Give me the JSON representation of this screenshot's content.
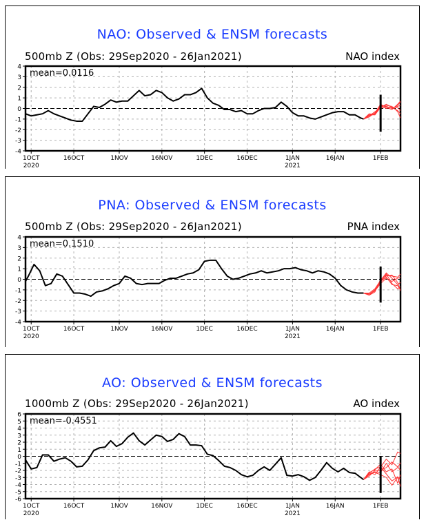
{
  "chart_data": [
    {
      "type": "line",
      "title": "NAO: Observed & ENSM forecasts",
      "subtitle": "500mb Z (Obs: 29Sep2020 - 26Jan2021)",
      "index_label": "NAO index",
      "mean_label": "mean=0.0116",
      "xlabel": "",
      "ylabel": "",
      "ylim": [
        -4,
        4
      ],
      "yticks": [
        "-4",
        "-3",
        "-2",
        "-1",
        "0",
        "1",
        "2",
        "3",
        "4"
      ],
      "xlim_days_since_29Sep2020": [
        0,
        132
      ],
      "xticks": [
        {
          "day": 2,
          "label": "1OCT",
          "year": "2020"
        },
        {
          "day": 17,
          "label": "16OCT",
          "year": ""
        },
        {
          "day": 33,
          "label": "1NOV",
          "year": ""
        },
        {
          "day": 48,
          "label": "16NOV",
          "year": ""
        },
        {
          "day": 63,
          "label": "1DEC",
          "year": ""
        },
        {
          "day": 78,
          "label": "16DEC",
          "year": ""
        },
        {
          "day": 94,
          "label": "1JAN",
          "year": "2021"
        },
        {
          "day": 109,
          "label": "16JAN",
          "year": ""
        },
        {
          "day": 125,
          "label": "1FEB",
          "year": ""
        }
      ],
      "grid": true,
      "today_bar": {
        "day": 125,
        "range": [
          -2.2,
          1.3
        ]
      },
      "observed": {
        "name": "Observed",
        "days": [
          0,
          2,
          4,
          6,
          8,
          10,
          12,
          14,
          16,
          18,
          20,
          22,
          24,
          26,
          28,
          30,
          32,
          34,
          36,
          38,
          40,
          42,
          44,
          46,
          48,
          50,
          52,
          54,
          56,
          58,
          60,
          62,
          64,
          66,
          68,
          70,
          72,
          74,
          76,
          78,
          80,
          82,
          84,
          86,
          88,
          90,
          92,
          94,
          96,
          98,
          100,
          102,
          104,
          106,
          108,
          110,
          112,
          114,
          116,
          118,
          119
        ],
        "values": [
          -0.5,
          -0.7,
          -0.6,
          -0.5,
          -0.2,
          -0.5,
          -0.7,
          -0.9,
          -1.1,
          -1.2,
          -1.2,
          -0.5,
          0.2,
          0.1,
          0.4,
          0.8,
          0.6,
          0.7,
          0.7,
          1.2,
          1.7,
          1.2,
          1.3,
          1.7,
          1.5,
          1.0,
          0.7,
          0.9,
          1.3,
          1.3,
          1.5,
          1.9,
          1.0,
          0.5,
          0.3,
          -0.1,
          -0.1,
          -0.3,
          -0.2,
          -0.5,
          -0.5,
          -0.2,
          0.0,
          0.0,
          0.1,
          0.6,
          0.2,
          -0.4,
          -0.7,
          -0.7,
          -0.9,
          -1.0,
          -0.8,
          -0.6,
          -0.4,
          -0.3,
          -0.3,
          -0.6,
          -0.6,
          -0.9,
          -1.0
        ]
      },
      "forecast": {
        "name": "ENSM forecasts",
        "days": [
          119,
          121,
          123,
          125,
          127,
          129,
          131,
          132
        ],
        "members": [
          [
            -1.0,
            -0.7,
            -0.5,
            0.3,
            0.2,
            0.0,
            0.3,
            0.6
          ],
          [
            -1.0,
            -0.6,
            -0.6,
            0.1,
            0.4,
            0.1,
            0.1,
            -0.2
          ],
          [
            -1.0,
            -0.8,
            -0.4,
            0.4,
            0.1,
            -0.1,
            0.4,
            0.7
          ],
          [
            -1.0,
            -0.6,
            -0.5,
            0.2,
            0.3,
            0.2,
            -0.3,
            -0.9
          ],
          [
            -1.0,
            -0.7,
            -0.3,
            0.0,
            0.2,
            0.0,
            0.2,
            0.3
          ],
          [
            -1.0,
            -0.5,
            -0.6,
            0.3,
            0.0,
            0.1,
            -0.2,
            -0.5
          ]
        ]
      },
      "colors": {
        "observed": "#000000",
        "forecast": "#ff3333",
        "title": "#1a3cff"
      }
    },
    {
      "type": "line",
      "title": "PNA: Observed & ENSM forecasts",
      "subtitle": "500mb Z (Obs: 29Sep2020 - 26Jan2021)",
      "index_label": "PNA index",
      "mean_label": "mean=0.1510",
      "xlabel": "",
      "ylabel": "",
      "ylim": [
        -4,
        4
      ],
      "yticks": [
        "-4",
        "-3",
        "-2",
        "-1",
        "0",
        "1",
        "2",
        "3",
        "4"
      ],
      "xlim_days_since_29Sep2020": [
        0,
        132
      ],
      "xticks": [
        {
          "day": 2,
          "label": "1OCT",
          "year": "2020"
        },
        {
          "day": 17,
          "label": "16OCT",
          "year": ""
        },
        {
          "day": 33,
          "label": "1NOV",
          "year": ""
        },
        {
          "day": 48,
          "label": "16NOV",
          "year": ""
        },
        {
          "day": 63,
          "label": "1DEC",
          "year": ""
        },
        {
          "day": 78,
          "label": "16DEC",
          "year": ""
        },
        {
          "day": 94,
          "label": "1JAN",
          "year": "2021"
        },
        {
          "day": 109,
          "label": "16JAN",
          "year": ""
        },
        {
          "day": 125,
          "label": "1FEB",
          "year": ""
        }
      ],
      "grid": true,
      "today_bar": {
        "day": 125,
        "range": [
          -2.2,
          1.2
        ]
      },
      "observed": {
        "name": "Observed",
        "days": [
          0,
          1,
          3,
          5,
          7,
          9,
          11,
          13,
          15,
          17,
          19,
          21,
          23,
          25,
          27,
          29,
          31,
          33,
          35,
          37,
          39,
          41,
          43,
          45,
          47,
          49,
          51,
          53,
          55,
          57,
          59,
          61,
          63,
          65,
          67,
          69,
          71,
          73,
          75,
          77,
          79,
          81,
          83,
          85,
          87,
          89,
          91,
          93,
          95,
          97,
          99,
          101,
          103,
          105,
          107,
          109,
          111,
          113,
          115,
          117,
          119
        ],
        "values": [
          -0.2,
          0.3,
          1.4,
          0.8,
          -0.6,
          -0.4,
          0.5,
          0.3,
          -0.5,
          -1.3,
          -1.3,
          -1.4,
          -1.6,
          -1.2,
          -1.1,
          -0.9,
          -0.6,
          -0.4,
          0.3,
          0.1,
          -0.4,
          -0.5,
          -0.4,
          -0.4,
          -0.4,
          -0.1,
          0.1,
          0.1,
          0.3,
          0.5,
          0.6,
          0.9,
          1.7,
          1.8,
          1.8,
          1.0,
          0.3,
          0.0,
          0.1,
          0.3,
          0.5,
          0.6,
          0.8,
          0.6,
          0.7,
          0.8,
          1.0,
          1.0,
          1.1,
          0.9,
          0.8,
          0.6,
          0.8,
          0.7,
          0.5,
          0.1,
          -0.6,
          -1.0,
          -1.2,
          -1.3,
          -1.3
        ]
      },
      "forecast": {
        "name": "ENSM forecasts",
        "days": [
          119,
          121,
          123,
          125,
          127,
          129,
          131,
          132
        ],
        "members": [
          [
            -1.3,
            -1.4,
            -1.1,
            -0.2,
            0.4,
            0.3,
            0.2,
            0.5
          ],
          [
            -1.3,
            -1.4,
            -1.0,
            -0.3,
            0.5,
            -0.4,
            -0.9,
            -0.7
          ],
          [
            -1.3,
            -1.5,
            -1.2,
            0.0,
            0.3,
            0.4,
            -0.3,
            -1.1
          ],
          [
            -1.3,
            -1.4,
            -1.1,
            -0.4,
            0.1,
            -0.2,
            0.1,
            0.2
          ],
          [
            -1.3,
            -1.3,
            -0.9,
            -0.1,
            0.6,
            0.1,
            -0.5,
            -0.3
          ],
          [
            -1.3,
            -1.5,
            -1.0,
            -0.2,
            0.2,
            -0.5,
            -0.6,
            -1.0
          ]
        ]
      },
      "colors": {
        "observed": "#000000",
        "forecast": "#ff3333",
        "title": "#1a3cff"
      }
    },
    {
      "type": "line",
      "title": "AO: Observed & ENSM forecasts",
      "subtitle": "1000mb Z (Obs: 29Sep2020 - 26Jan2021)",
      "index_label": "AO index",
      "mean_label": "mean=-0.4551",
      "xlabel": "",
      "ylabel": "",
      "ylim": [
        -6,
        6
      ],
      "yticks": [
        "-6",
        "-5",
        "-4",
        "-3",
        "-2",
        "-1",
        "0",
        "1",
        "2",
        "3",
        "4",
        "5",
        "6"
      ],
      "xlim_days_since_29Sep2020": [
        0,
        132
      ],
      "xticks": [
        {
          "day": 2,
          "label": "1OCT",
          "year": "2020"
        },
        {
          "day": 17,
          "label": "16OCT",
          "year": ""
        },
        {
          "day": 33,
          "label": "1NOV",
          "year": ""
        },
        {
          "day": 48,
          "label": "16NOV",
          "year": ""
        },
        {
          "day": 63,
          "label": "1DEC",
          "year": ""
        },
        {
          "day": 78,
          "label": "16DEC",
          "year": ""
        },
        {
          "day": 94,
          "label": "1JAN",
          "year": "2021"
        },
        {
          "day": 109,
          "label": "16JAN",
          "year": ""
        },
        {
          "day": 125,
          "label": "1FEB",
          "year": ""
        }
      ],
      "grid": true,
      "today_bar": {
        "day": 125,
        "range": [
          -5.2,
          0.0
        ]
      },
      "observed": {
        "name": "Observed",
        "days": [
          0,
          2,
          4,
          6,
          8,
          10,
          12,
          14,
          16,
          18,
          20,
          22,
          24,
          26,
          28,
          30,
          32,
          34,
          36,
          38,
          40,
          42,
          44,
          46,
          48,
          50,
          52,
          54,
          56,
          58,
          60,
          62,
          64,
          66,
          68,
          70,
          72,
          74,
          76,
          78,
          80,
          82,
          84,
          86,
          88,
          90,
          92,
          94,
          96,
          98,
          100,
          102,
          104,
          106,
          108,
          110,
          112,
          114,
          116,
          118,
          119
        ],
        "values": [
          -0.5,
          -1.8,
          -1.6,
          0.2,
          0.2,
          -0.7,
          -0.4,
          -0.2,
          -0.7,
          -1.5,
          -1.4,
          -0.5,
          0.8,
          1.2,
          1.3,
          2.2,
          1.4,
          1.8,
          2.7,
          3.3,
          2.2,
          1.6,
          2.3,
          3.0,
          2.8,
          2.1,
          2.4,
          3.2,
          2.8,
          1.6,
          1.6,
          1.5,
          0.3,
          0.1,
          -0.6,
          -1.4,
          -1.6,
          -2.0,
          -2.6,
          -2.9,
          -2.7,
          -2.0,
          -1.5,
          -2.0,
          -1.1,
          -0.2,
          -2.7,
          -2.8,
          -2.6,
          -2.9,
          -3.4,
          -3.0,
          -2.0,
          -0.9,
          -1.7,
          -2.2,
          -1.7,
          -2.3,
          -2.4,
          -3.0,
          -3.3
        ]
      },
      "forecast": {
        "name": "ENSM forecasts",
        "days": [
          119,
          121,
          123,
          125,
          127,
          129,
          131,
          132
        ],
        "members": [
          [
            -3.3,
            -2.4,
            -1.8,
            -1.5,
            -0.4,
            -1.2,
            0.6,
            0.4
          ],
          [
            -3.3,
            -2.6,
            -2.2,
            -2.3,
            -1.0,
            -2.2,
            -1.6,
            -0.9
          ],
          [
            -3.3,
            -2.2,
            -2.6,
            -1.5,
            -2.5,
            -3.5,
            -2.9,
            -4.3
          ],
          [
            -3.3,
            -2.8,
            -2.0,
            -2.0,
            -1.6,
            -0.8,
            -1.5,
            -2.0
          ],
          [
            -3.3,
            -2.5,
            -2.3,
            -2.6,
            -3.0,
            -4.1,
            -3.0,
            -3.2
          ],
          [
            -3.3,
            -2.3,
            -1.9,
            -1.1,
            -2.2,
            -1.8,
            -3.8,
            -2.6
          ]
        ]
      },
      "colors": {
        "observed": "#000000",
        "forecast": "#ff3333",
        "title": "#1a3cff"
      }
    }
  ]
}
